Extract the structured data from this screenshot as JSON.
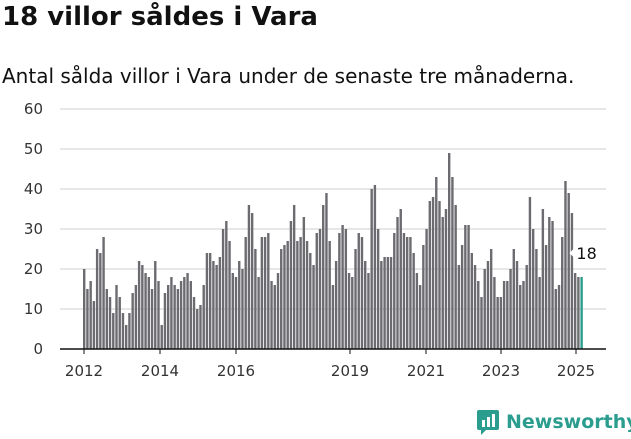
{
  "title": "18 villor såldes i Vara",
  "subtitle": "Antal sålda villor i Vara under de senaste tre månaderna.",
  "brand": {
    "name": "Newsworthy",
    "logo_icon": "newsworthy-logo-icon"
  },
  "colors": {
    "bar": "#6b6b70",
    "highlight": "#2a9d8f",
    "grid": "#cfcfcf",
    "axis": "#111111",
    "brand": "#2a9d8f"
  },
  "chart_data": {
    "type": "bar",
    "title": "18 villor såldes i Vara",
    "subtitle": "Antal sålda villor i Vara under de senaste tre månaderna.",
    "xlabel": "",
    "ylabel": "",
    "ylim": [
      0,
      60
    ],
    "yticks": [
      "0",
      "10",
      "20",
      "30",
      "40",
      "50",
      "60"
    ],
    "xticks": [
      "2012",
      "2014",
      "2016",
      "2019",
      "2021",
      "2023",
      "2025"
    ],
    "grid": true,
    "legend": "none",
    "callout": "18",
    "values": [
      20,
      15,
      17,
      12,
      25,
      24,
      28,
      15,
      13,
      9,
      16,
      13,
      9,
      6,
      9,
      14,
      16,
      22,
      21,
      19,
      18,
      15,
      22,
      17,
      6,
      14,
      16,
      18,
      16,
      15,
      17,
      18,
      19,
      17,
      13,
      10,
      11,
      16,
      24,
      24,
      22,
      21,
      23,
      30,
      32,
      27,
      19,
      18,
      22,
      20,
      28,
      36,
      34,
      25,
      18,
      28,
      28,
      29,
      17,
      16,
      19,
      25,
      26,
      27,
      32,
      36,
      27,
      28,
      33,
      27,
      24,
      21,
      29,
      30,
      36,
      39,
      27,
      16,
      22,
      29,
      31,
      30,
      19,
      18,
      25,
      29,
      28,
      22,
      19,
      40,
      41,
      30,
      22,
      23,
      23,
      23,
      29,
      33,
      35,
      29,
      28,
      28,
      24,
      19,
      16,
      26,
      30,
      37,
      38,
      43,
      37,
      33,
      35,
      49,
      43,
      36,
      21,
      26,
      31,
      31,
      24,
      21,
      17,
      13,
      20,
      22,
      25,
      18,
      13,
      13,
      17,
      17,
      20,
      25,
      22,
      16,
      17,
      21,
      38,
      30,
      25,
      18,
      35,
      26,
      33,
      32,
      15,
      16,
      28,
      42,
      39,
      34,
      19,
      18,
      18
    ],
    "highlight_last": 1
  }
}
